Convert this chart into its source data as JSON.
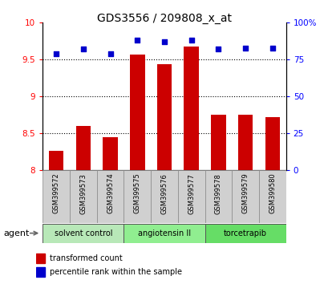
{
  "title": "GDS3556 / 209808_x_at",
  "samples": [
    "GSM399572",
    "GSM399573",
    "GSM399574",
    "GSM399575",
    "GSM399576",
    "GSM399577",
    "GSM399578",
    "GSM399579",
    "GSM399580"
  ],
  "bar_values": [
    8.27,
    8.6,
    8.45,
    9.57,
    9.44,
    9.68,
    8.75,
    8.75,
    8.72
  ],
  "dot_values": [
    79,
    82,
    79,
    88,
    87,
    88,
    82,
    83,
    83
  ],
  "bar_color": "#CC0000",
  "dot_color": "#0000CC",
  "ylim_left": [
    8.0,
    10.0
  ],
  "ylim_right": [
    0,
    100
  ],
  "yticks_left": [
    8.0,
    8.5,
    9.0,
    9.5,
    10.0
  ],
  "ytick_labels_left": [
    "8",
    "8.5",
    "9",
    "9.5",
    "10"
  ],
  "yticks_right": [
    0,
    25,
    50,
    75,
    100
  ],
  "ytick_labels_right": [
    "0",
    "25",
    "50",
    "75",
    "100%"
  ],
  "gridlines": [
    8.5,
    9.0,
    9.5
  ],
  "group_configs": [
    {
      "start": 0,
      "end": 3,
      "label": "solvent control",
      "color": "#b8e8b8"
    },
    {
      "start": 3,
      "end": 6,
      "label": "angiotensin II",
      "color": "#90ee90"
    },
    {
      "start": 6,
      "end": 9,
      "label": "torcetrapib",
      "color": "#66dd66"
    }
  ],
  "legend_bar_label": "transformed count",
  "legend_dot_label": "percentile rank within the sample",
  "agent_label": "agent",
  "bar_width": 0.55,
  "sample_box_color": "#d0d0d0",
  "title_fontsize": 10,
  "axis_fontsize": 7.5,
  "label_fontsize": 6,
  "group_fontsize": 7,
  "legend_fontsize": 7
}
